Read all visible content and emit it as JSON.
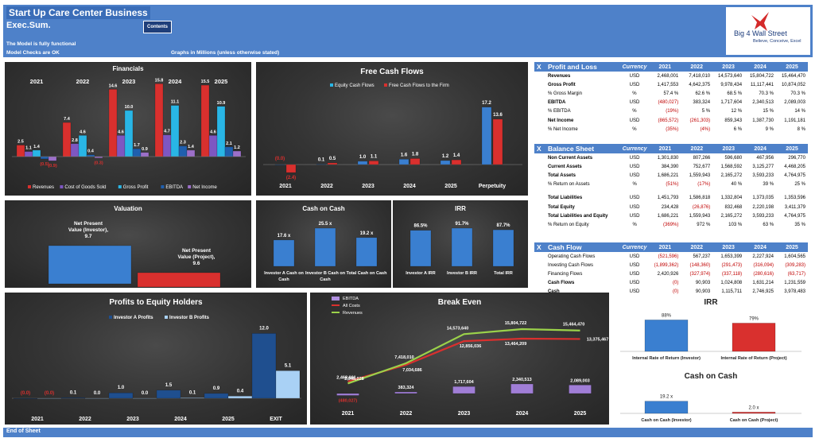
{
  "header": {
    "title": "Start Up Care Center Business",
    "subtitle": "Exec.Sum.",
    "contents_button": "Contents",
    "note1": "The Model is fully functional",
    "note2": "Model Checks are OK",
    "graphs_note": "Graphs in Millions (unless otherwise stated)",
    "logo_text": "Big 4 Wall Street",
    "logo_tagline": "Believe, Conceive, Excel"
  },
  "footer": {
    "text": "End of Sheet"
  },
  "financials": {
    "title": "Financials",
    "years": [
      "2021",
      "2022",
      "2023",
      "2024",
      "2025"
    ],
    "series": [
      {
        "name": "Revenues",
        "color": "#d9302e",
        "values": [
          2.5,
          7.4,
          14.6,
          15.8,
          15.5
        ]
      },
      {
        "name": "Cost of Goods Sold",
        "color": "#7e57c2",
        "values": [
          1.1,
          2.8,
          4.6,
          4.7,
          4.6
        ]
      },
      {
        "name": "Gross Profit",
        "color": "#29b6e6",
        "values": [
          1.4,
          4.6,
          10.0,
          11.1,
          10.9
        ]
      },
      {
        "name": "EBITDA",
        "color": "#1f5fae",
        "values": [
          -0.5,
          0.4,
          1.7,
          2.3,
          2.1
        ]
      },
      {
        "name": "Net Income",
        "color": "#9c6fc9",
        "values": [
          -0.9,
          -0.3,
          0.9,
          1.4,
          1.2
        ]
      }
    ],
    "labels": [
      [
        "2.5",
        "1.1",
        "1.4",
        "(0.5)",
        "(0.9)"
      ],
      [
        "7.4",
        "2.8",
        "4.6",
        "0.4",
        "(0.3)"
      ],
      [
        "14.6",
        "4.6",
        "10.0",
        "1.7",
        "0.9"
      ],
      [
        "15.8",
        "4.7",
        "11.1",
        "2.3",
        "1.4"
      ],
      [
        "15.5",
        "4.6",
        "10.9",
        "2.1",
        "1.2"
      ]
    ]
  },
  "fcf": {
    "title": "Free Cash Flows",
    "legend": [
      "Equity Cash Flows",
      "Free Cash Flows to the Firm"
    ],
    "categories": [
      "2021",
      "2022",
      "2023",
      "2024",
      "2025",
      "Perpetuity"
    ],
    "equity": [
      -0.0,
      0.1,
      1.0,
      1.6,
      1.2,
      17.2
    ],
    "firm": [
      -2.4,
      0.5,
      1.1,
      1.8,
      1.4,
      13.6
    ],
    "equity_labels": [
      "(0.0)",
      "0.1",
      "1.0",
      "1.6",
      "1.2",
      "17.2"
    ],
    "firm_labels": [
      "(2.4)",
      "0.5",
      "1.1",
      "1.8",
      "1.4",
      "13.6"
    ]
  },
  "valuation": {
    "title": "Valuation",
    "npv_investor_label": "Net Present Value (Investor),",
    "npv_investor_value": "9.7",
    "npv_project_label": "Net Present Value (Project),",
    "npv_project_value": "9.6",
    "values": [
      9.7,
      9.6
    ]
  },
  "coc1": {
    "title": "Cash on Cash",
    "categories": [
      "Investor A Cash on Cash",
      "Investor B Cash on Cash",
      "Total Cash on Cash"
    ],
    "values": [
      17.6,
      25.5,
      19.2
    ],
    "labels": [
      "17.6 x",
      "25.5 x",
      "19.2 x"
    ]
  },
  "irr1": {
    "title": "IRR",
    "categories": [
      "Investor A IRR",
      "Investor B IRR",
      "Total IRR"
    ],
    "values": [
      86.5,
      91.7,
      87.7
    ],
    "labels": [
      "86.5%",
      "91.7%",
      "87.7%"
    ]
  },
  "pl": {
    "title": "Profit and Loss",
    "currency_header": "Currency",
    "years": [
      "2021",
      "2022",
      "2023",
      "2024",
      "2025"
    ],
    "rows": [
      {
        "label": "Revenues",
        "cur": "USD",
        "vals": [
          "2,468,001",
          "7,418,010",
          "14,573,640",
          "15,804,722",
          "15,464,470"
        ],
        "bold": true
      },
      {
        "label": "Gross Profit",
        "cur": "USD",
        "vals": [
          "1,417,553",
          "4,642,375",
          "9,978,434",
          "11,117,441",
          "10,874,052"
        ],
        "bold": true
      },
      {
        "label": "% Gross Margin",
        "cur": "%",
        "vals": [
          "57.4 %",
          "62.6 %",
          "68.5 %",
          "70.3 %",
          "70.3 %"
        ]
      },
      {
        "label": "EBITDA",
        "cur": "USD",
        "vals": [
          "(480,027)",
          "383,324",
          "1,717,604",
          "2,340,513",
          "2,089,003"
        ],
        "bold": true
      },
      {
        "label": "% EBITDA",
        "cur": "%",
        "vals": [
          "(19%)",
          "5 %",
          "12 %",
          "15 %",
          "14 %"
        ]
      },
      {
        "label": "Net Income",
        "cur": "USD",
        "vals": [
          "(865,572)",
          "(261,303)",
          "859,343",
          "1,387,730",
          "1,191,181"
        ],
        "bold": true
      },
      {
        "label": "% Net Income",
        "cur": "%",
        "vals": [
          "(35%)",
          "(4%)",
          "6 %",
          "9 %",
          "8 %"
        ]
      }
    ]
  },
  "bs": {
    "title": "Balance Sheet",
    "currency_header": "Currency",
    "years": [
      "2021",
      "2022",
      "2023",
      "2024",
      "2025"
    ],
    "rows": [
      {
        "label": "Non Current Assets",
        "cur": "USD",
        "vals": [
          "1,301,830",
          "807,266",
          "596,680",
          "467,956",
          "296,770"
        ],
        "bold": true
      },
      {
        "label": "Current Assets",
        "cur": "USD",
        "vals": [
          "384,390",
          "752,677",
          "1,568,592",
          "3,125,277",
          "4,468,205"
        ],
        "bold": true
      },
      {
        "label": "Total Assets",
        "cur": "USD",
        "vals": [
          "1,686,221",
          "1,559,943",
          "2,165,272",
          "3,593,233",
          "4,764,975"
        ],
        "bold": true
      },
      {
        "label": "% Return on Assets",
        "cur": "%",
        "vals": [
          "(51%)",
          "(17%)",
          "40 %",
          "39 %",
          "25 %"
        ]
      },
      {
        "label": "",
        "cur": "",
        "vals": [
          "",
          "",
          "",
          "",
          ""
        ],
        "spacer": true
      },
      {
        "label": "Total Liabilities",
        "cur": "USD",
        "vals": [
          "1,451,793",
          "1,586,818",
          "1,332,804",
          "1,373,035",
          "1,353,596"
        ],
        "bold": true
      },
      {
        "label": "Total Equity",
        "cur": "USD",
        "vals": [
          "234,428",
          "(26,876)",
          "832,468",
          "2,220,198",
          "3,411,379"
        ],
        "bold": true
      },
      {
        "label": "Total Liabilities and Equity",
        "cur": "USD",
        "vals": [
          "1,686,221",
          "1,559,943",
          "2,165,272",
          "3,593,233",
          "4,764,975"
        ],
        "bold": true
      },
      {
        "label": "% Return on Equity",
        "cur": "%",
        "vals": [
          "(369%)",
          "972 %",
          "103 %",
          "63 %",
          "35 %"
        ]
      }
    ]
  },
  "cf": {
    "title": "Cash Flow",
    "currency_header": "Currency",
    "years": [
      "2021",
      "2022",
      "2023",
      "2024",
      "2025"
    ],
    "rows": [
      {
        "label": "Operating Cash Flows",
        "cur": "USD",
        "vals": [
          "(521,596)",
          "567,237",
          "1,653,399",
          "2,227,924",
          "1,604,565"
        ]
      },
      {
        "label": "Investing Cash Flows",
        "cur": "USD",
        "vals": [
          "(1,899,362)",
          "(148,360)",
          "(291,473)",
          "(316,094)",
          "(309,283)"
        ]
      },
      {
        "label": "Financing Flows",
        "cur": "USD",
        "vals": [
          "2,420,926",
          "(327,974)",
          "(337,118)",
          "(280,616)",
          "(63,717)"
        ]
      },
      {
        "label": "Cash Flows",
        "cur": "USD",
        "vals": [
          "(0)",
          "90,903",
          "1,024,808",
          "1,631,214",
          "1,231,559"
        ],
        "bold": true
      },
      {
        "label": "Cash",
        "cur": "USD",
        "vals": [
          "(0)",
          "90,903",
          "1,115,711",
          "2,746,925",
          "3,978,483"
        ],
        "bold": true
      }
    ]
  },
  "profits": {
    "title": "Profits to Equity Holders",
    "legend": [
      "Investor A Profits",
      "Investor B Profits"
    ],
    "categories": [
      "2021",
      "2022",
      "2023",
      "2024",
      "2025",
      "EXIT"
    ],
    "a": [
      -0.0,
      0.1,
      1.0,
      1.5,
      0.9,
      12.0
    ],
    "b": [
      -0.0,
      0.0,
      0.0,
      0.1,
      0.4,
      5.1
    ],
    "a_labels": [
      "(0.0)",
      "0.1",
      "1.0",
      "1.5",
      "0.9",
      "12.0"
    ],
    "b_labels": [
      "(0.0)",
      "0.0",
      "0.0",
      "0.1",
      "0.4",
      "5.1"
    ]
  },
  "breakeven": {
    "title": "Break Even",
    "legend": [
      "EBITDA",
      "All Costs",
      "Revenues"
    ],
    "categories": [
      "2021",
      "2022",
      "2023",
      "2024",
      "2025"
    ],
    "ebitda": [
      -480027,
      383324,
      1717604,
      2340513,
      2089003
    ],
    "costs": [
      2948028,
      7034686,
      12856036,
      13464209,
      13375467
    ],
    "revenues": [
      2468001,
      7418010,
      14573640,
      15804722,
      15464470
    ],
    "ebitda_labels": [
      "(480,027)",
      "383,324",
      "1,717,604",
      "2,340,513",
      "2,089,003"
    ],
    "costs_labels": [
      "2,948,028",
      "7,034,686",
      "12,856,036",
      "13,464,209",
      "13,375,467"
    ],
    "revenues_labels": [
      "2,468,001",
      "7,418,010",
      "14,573,640",
      "15,804,722",
      "15,464,470"
    ]
  },
  "irr2": {
    "title": "IRR",
    "categories": [
      "Internal Rate of Return (Investor)",
      "Internal Rate of Return (Project)"
    ],
    "values": [
      88,
      79
    ],
    "labels": [
      "88%",
      "79%"
    ]
  },
  "coc2": {
    "title": "Cash on Cash",
    "categories": [
      "Cash on Cash (Investor)",
      "Cash on Cash (Project)"
    ],
    "values": [
      19.2,
      2.0
    ],
    "labels": [
      "19.2 x",
      "2.0 x"
    ]
  }
}
